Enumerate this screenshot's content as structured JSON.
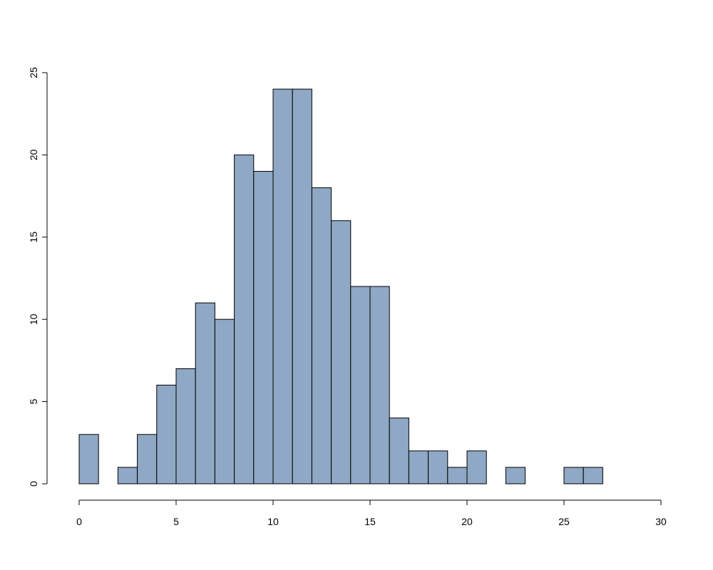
{
  "chart_data": {
    "type": "histogram",
    "bins": [
      0,
      1,
      2,
      3,
      4,
      5,
      6,
      7,
      8,
      9,
      10,
      11,
      12,
      13,
      14,
      15,
      16,
      17,
      18,
      19,
      20,
      21,
      22,
      23,
      24,
      25,
      26,
      27
    ],
    "values": [
      3,
      0,
      1,
      3,
      6,
      7,
      11,
      10,
      20,
      19,
      24,
      24,
      18,
      16,
      12,
      12,
      4,
      2,
      2,
      1,
      2,
      0,
      1,
      0,
      0,
      1,
      1
    ],
    "color": "#8ea8c5",
    "xlim": [
      0,
      30
    ],
    "xticks": [
      0,
      5,
      10,
      15,
      20,
      25,
      30
    ],
    "ylim": [
      0,
      25
    ],
    "yticks": [
      0,
      5,
      10,
      15,
      20,
      25
    ]
  }
}
